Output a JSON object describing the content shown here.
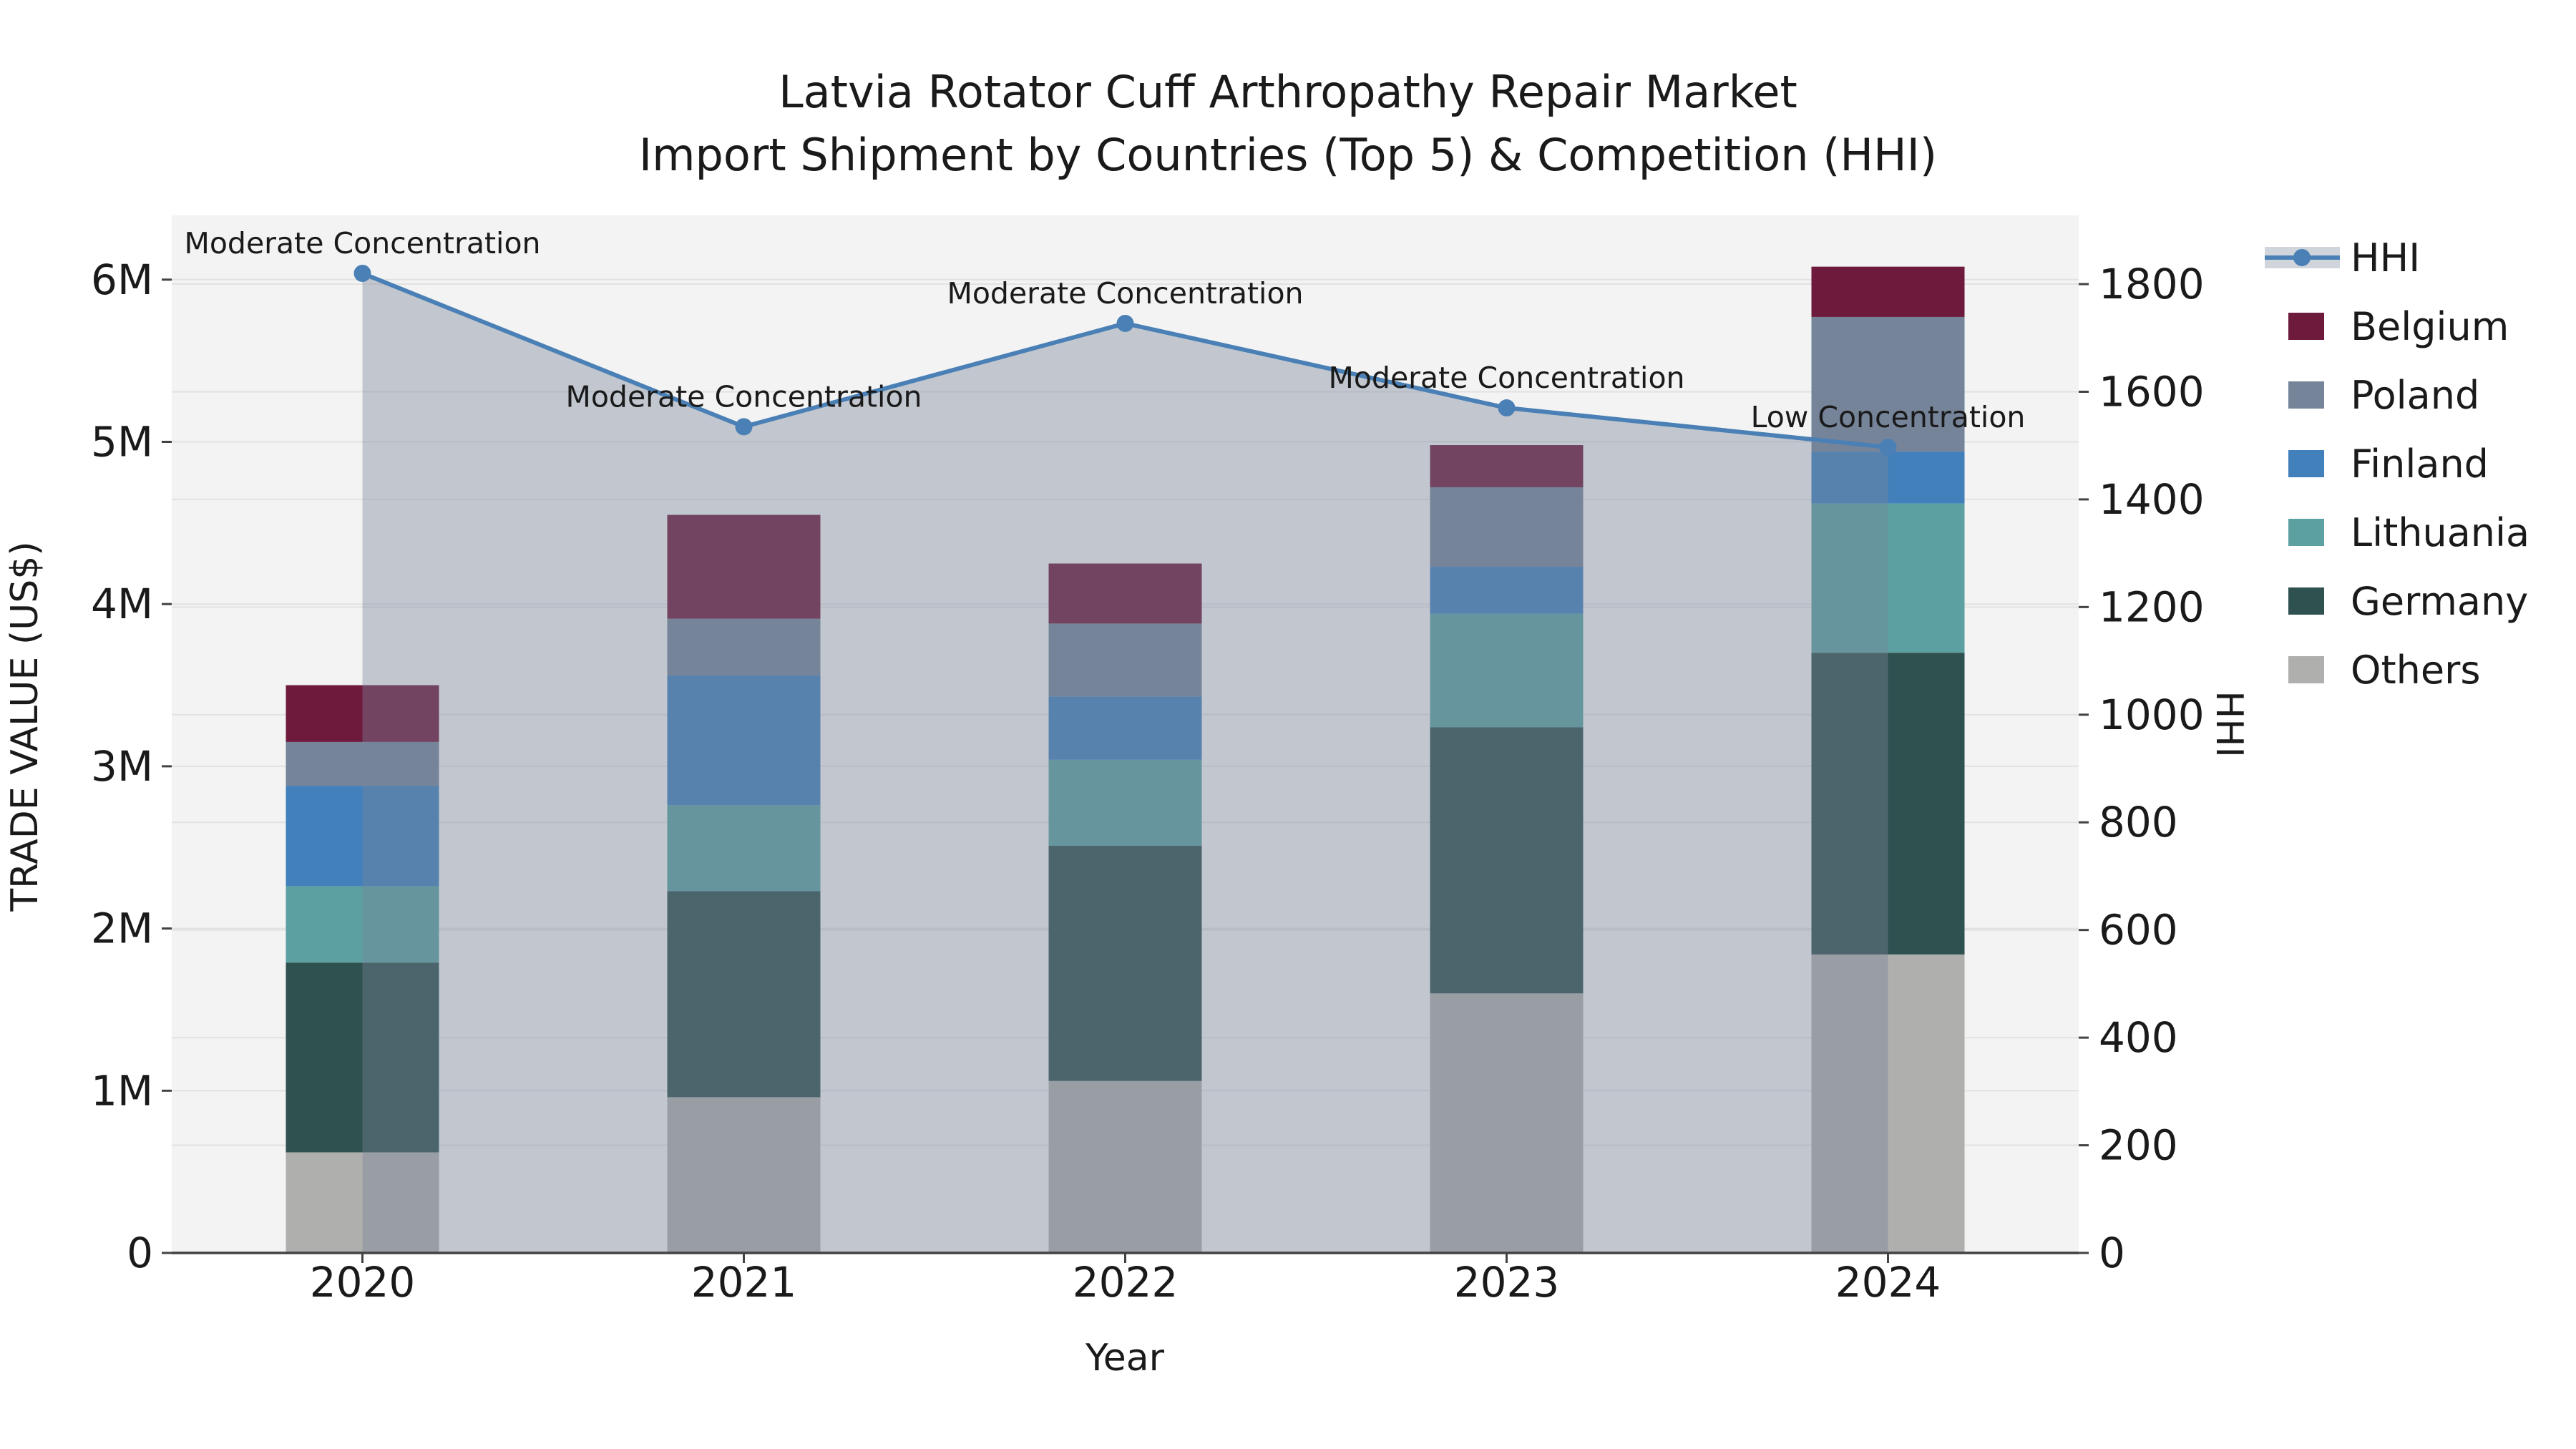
{
  "chart_data": {
    "type": "bar",
    "subtype": "stacked-bars-with-line-overlay",
    "title": "Latvia Rotator Cuff Arthropathy Repair Market",
    "subtitle": "Import Shipment by Countries (Top 5) & Competition (HHI)",
    "xlabel": "Year",
    "ylabel": "TRADE VALUE (US$)",
    "y2label": "HHI",
    "categories": [
      "2020",
      "2021",
      "2022",
      "2023",
      "2024"
    ],
    "values_unit": "million US$",
    "series": [
      {
        "name": "Others",
        "color": "#AFB0AE",
        "values": [
          0.62,
          0.96,
          1.06,
          1.6,
          1.84
        ]
      },
      {
        "name": "Germany",
        "color": "#2F5150",
        "values": [
          1.17,
          1.27,
          1.45,
          1.64,
          1.86
        ]
      },
      {
        "name": "Lithuania",
        "color": "#5DA0A1",
        "values": [
          0.47,
          0.53,
          0.53,
          0.7,
          0.92
        ]
      },
      {
        "name": "Finland",
        "color": "#4280BB",
        "values": [
          0.62,
          0.8,
          0.39,
          0.29,
          0.32
        ]
      },
      {
        "name": "Poland",
        "color": "#76849A",
        "values": [
          0.27,
          0.35,
          0.45,
          0.49,
          0.83
        ]
      },
      {
        "name": "Belgium",
        "color": "#6E1A3D",
        "values": [
          0.35,
          0.64,
          0.37,
          0.26,
          0.31
        ]
      }
    ],
    "bar_totals_millions": [
      3.5,
      4.55,
      4.25,
      4.98,
      6.08
    ],
    "hhi_line": {
      "name": "HHI",
      "color": "#4A80B5",
      "area_fill": "#778599",
      "area_opacity": 0.4,
      "values": [
        1820,
        1535,
        1727,
        1570,
        1497
      ],
      "annotations": [
        "Moderate Concentration",
        "Moderate Concentration",
        "Moderate Concentration",
        "Moderate Concentration",
        "Low Concentration"
      ]
    },
    "y_axis": {
      "tick_labels": [
        "0",
        "1M",
        "2M",
        "3M",
        "4M",
        "5M",
        "6M"
      ],
      "tick_values": [
        0,
        1,
        2,
        3,
        4,
        5,
        6
      ],
      "max_value": 6.4
    },
    "y2_axis": {
      "tick_labels": [
        "0",
        "200",
        "400",
        "600",
        "800",
        "1000",
        "1200",
        "1400",
        "1600",
        "1800"
      ],
      "tick_values": [
        0,
        200,
        400,
        600,
        800,
        1000,
        1200,
        1400,
        1600,
        1800
      ],
      "max_value": 1928
    },
    "legend": {
      "position": "right",
      "items": [
        "HHI",
        "Belgium",
        "Poland",
        "Finland",
        "Lithuania",
        "Germany",
        "Others"
      ]
    },
    "grid": true
  },
  "colors": {
    "figure_background": "#FFFFFF",
    "plot_background": "#F3F3F3",
    "gridline": "#E2E2E3",
    "axis_line": "#424242",
    "text": "#1A1A1A"
  }
}
